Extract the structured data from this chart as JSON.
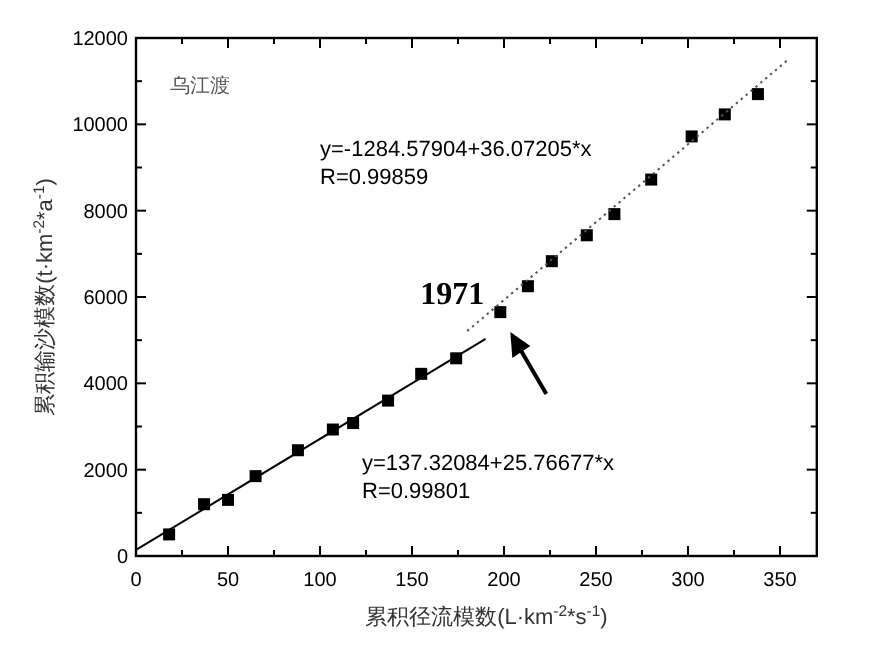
{
  "chart_data": {
    "type": "scatter",
    "title": "乌江渡",
    "xlabel": "累积径流模数(L·km$^{-2}$*s$^{-1}$)",
    "ylabel": "累积输沙模数(t·km$^{-2}$*a$^{-1}$)",
    "xlim": [
      0,
      370
    ],
    "ylim": [
      0,
      12000
    ],
    "xticks": [
      0,
      {
        "value": 25,
        "label": null
      },
      50,
      {
        "value": 75,
        "label": null
      },
      100,
      {
        "value": 125,
        "label": null
      },
      150,
      {
        "value": 175,
        "label": null
      },
      200,
      {
        "value": 225,
        "label": null
      },
      250,
      {
        "value": 275,
        "label": null
      },
      300,
      {
        "value": 325,
        "label": null
      },
      350
    ],
    "yticks": [
      0,
      {
        "value": 1000,
        "label": null
      },
      2000,
      {
        "value": 3000,
        "label": null
      },
      4000,
      {
        "value": 5000,
        "label": null
      },
      6000,
      {
        "value": 7000,
        "label": null
      },
      8000,
      {
        "value": 9000,
        "label": null
      },
      10000,
      {
        "value": 11000,
        "label": null
      },
      12000
    ],
    "series": [
      {
        "type": "scatter",
        "marker": "square",
        "color": "#000000",
        "x": [
          18,
          37,
          50,
          65,
          88,
          107,
          118,
          137,
          155,
          174,
          198,
          213,
          226,
          245,
          260,
          280,
          302,
          320,
          338
        ],
        "values": [
          500,
          1200,
          1300,
          1850,
          2450,
          2930,
          3080,
          3600,
          4220,
          4580,
          5650,
          6250,
          6830,
          7430,
          7920,
          8720,
          9720,
          10230,
          10700
        ]
      },
      {
        "type": "line",
        "line_style": "solid",
        "color": "#000000",
        "x": [
          0,
          190
        ],
        "values": [
          140,
          5030
        ]
      },
      {
        "type": "line",
        "line_style": "dotted",
        "color": "#555555",
        "x": [
          180,
          355
        ],
        "values": [
          5210,
          11520
        ]
      }
    ],
    "annotations": [
      "y=-1284.57904+36.07205*x",
      "R=0.99859",
      "y=137.32084+25.76677*x",
      "R=0.99801",
      {
        "text": "1971",
        "x": 198,
        "y": 5650
      }
    ]
  }
}
